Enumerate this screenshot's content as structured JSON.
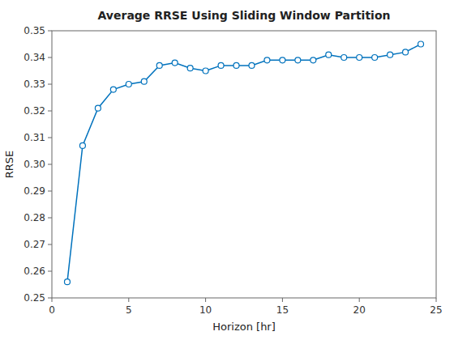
{
  "chart_data": {
    "type": "line",
    "title": "Average RRSE Using Sliding Window Partition",
    "xlabel": "Horizon [hr]",
    "ylabel": "RRSE",
    "x": [
      1,
      2,
      3,
      4,
      5,
      6,
      7,
      8,
      9,
      10,
      11,
      12,
      13,
      14,
      15,
      16,
      17,
      18,
      19,
      20,
      21,
      22,
      23,
      24
    ],
    "values": [
      0.256,
      0.307,
      0.321,
      0.328,
      0.33,
      0.331,
      0.337,
      0.338,
      0.336,
      0.335,
      0.337,
      0.337,
      0.337,
      0.339,
      0.339,
      0.339,
      0.339,
      0.341,
      0.34,
      0.34,
      0.34,
      0.341,
      0.342,
      0.345
    ],
    "color": "#0072BD",
    "marker": "circle",
    "xlim": [
      0,
      25
    ],
    "xticks": [
      0,
      5,
      10,
      15,
      20,
      25
    ],
    "ylim": [
      0.25,
      0.35
    ],
    "yticks": [
      0.25,
      0.26,
      0.27,
      0.28,
      0.29,
      {
        "value": 0.3,
        "label": "0.30"
      },
      0.31,
      0.32,
      0.33,
      0.34,
      0.35
    ],
    "grid": false
  }
}
